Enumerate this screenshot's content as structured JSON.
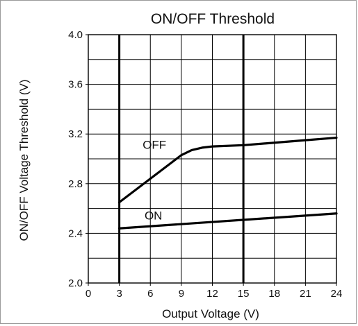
{
  "chart_data": {
    "type": "line",
    "title": "ON/OFF Threshold",
    "xlabel": "Output Voltage (V)",
    "ylabel": "ON/OFF  Voltage Threshold (V)",
    "xlim": [
      0,
      24
    ],
    "ylim": [
      2.0,
      4.0
    ],
    "x_ticks": [
      0,
      3,
      6,
      9,
      12,
      15,
      18,
      21,
      24
    ],
    "y_ticks_labeled": [
      2.0,
      2.4,
      2.8,
      3.2,
      3.6,
      4.0
    ],
    "y_tick_labels": [
      "2.0",
      "2.4",
      "2.8",
      "3.2",
      "3.6",
      "4.0"
    ],
    "y_gridlines": [
      2.0,
      2.2,
      2.4,
      2.6,
      2.8,
      3.0,
      3.2,
      3.4,
      3.6,
      3.8,
      4.0
    ],
    "x_gridlines": [
      0,
      3,
      6,
      9,
      12,
      15,
      18,
      21,
      24
    ],
    "bold_x_gridlines": [
      3,
      15
    ],
    "grid": true,
    "legend": "none",
    "series": [
      {
        "name": "OFF",
        "x": [
          3,
          6,
          9,
          10,
          11,
          12,
          15,
          18,
          21,
          24
        ],
        "y": [
          2.65,
          2.84,
          3.03,
          3.07,
          3.09,
          3.1,
          3.11,
          3.13,
          3.15,
          3.17
        ],
        "label_x": 6.4,
        "label_y": 3.08
      },
      {
        "name": "ON",
        "x": [
          3,
          24
        ],
        "y": [
          2.44,
          2.56
        ],
        "label_x": 6.3,
        "label_y": 2.51
      }
    ],
    "colors": {
      "series": "#000000",
      "grid": "#000000",
      "bold_grid": "#000000",
      "text": "#111111"
    }
  }
}
